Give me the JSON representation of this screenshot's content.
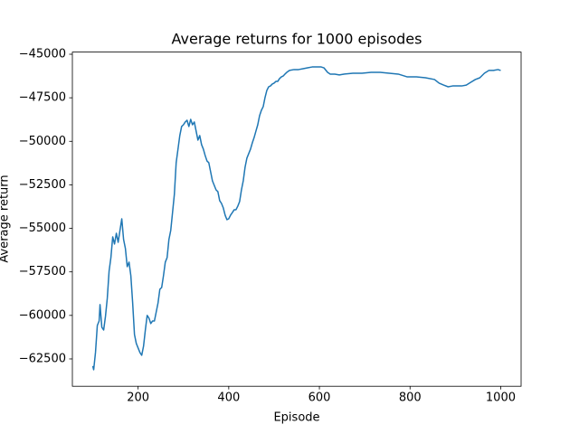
{
  "chart_data": {
    "type": "line",
    "title": "Average returns for 1000 episodes",
    "x_label": "Episode",
    "y_label": "Average return",
    "color": "#1f77b4",
    "x": [
      100,
      102,
      106,
      110,
      114,
      116,
      120,
      124,
      128,
      132,
      136,
      140,
      144,
      148,
      152,
      156,
      160,
      164,
      168,
      172,
      176,
      180,
      184,
      188,
      192,
      196,
      200,
      204,
      208,
      212,
      216,
      220,
      224,
      228,
      232,
      236,
      240,
      244,
      248,
      252,
      256,
      260,
      264,
      268,
      272,
      276,
      280,
      284,
      288,
      292,
      296,
      300,
      304,
      308,
      312,
      316,
      320,
      324,
      328,
      332,
      336,
      340,
      344,
      348,
      352,
      356,
      360,
      364,
      368,
      372,
      376,
      380,
      384,
      388,
      392,
      396,
      400,
      404,
      408,
      412,
      416,
      420,
      424,
      428,
      432,
      436,
      440,
      444,
      448,
      452,
      456,
      460,
      464,
      468,
      472,
      476,
      480,
      484,
      488,
      492,
      496,
      500,
      504,
      508,
      512,
      516,
      520,
      524,
      528,
      534,
      544,
      554,
      564,
      574,
      584,
      594,
      604,
      610,
      618,
      624,
      634,
      644,
      654,
      674,
      694,
      714,
      734,
      754,
      774,
      794,
      814,
      834,
      854,
      864,
      874,
      884,
      894,
      904,
      914,
      924,
      934,
      944,
      954,
      964,
      974,
      984,
      994,
      1000
    ],
    "values": [
      -62910,
      -63120,
      -62130,
      -60580,
      -60320,
      -59380,
      -60680,
      -60840,
      -60060,
      -59020,
      -57460,
      -56680,
      -55490,
      -55900,
      -55280,
      -55800,
      -55120,
      -54450,
      -55640,
      -56160,
      -57200,
      -56940,
      -57720,
      -59280,
      -61100,
      -61610,
      -61870,
      -62130,
      -62290,
      -61770,
      -60840,
      -60000,
      -60160,
      -60470,
      -60320,
      -60320,
      -59800,
      -59280,
      -58500,
      -58400,
      -57720,
      -56940,
      -56680,
      -55640,
      -55120,
      -54090,
      -53050,
      -51230,
      -50450,
      -49670,
      -49150,
      -49050,
      -48890,
      -48790,
      -49150,
      -48740,
      -49050,
      -48890,
      -49410,
      -49930,
      -49670,
      -50190,
      -50450,
      -50820,
      -51130,
      -51230,
      -51750,
      -52270,
      -52530,
      -52790,
      -52890,
      -53410,
      -53570,
      -53830,
      -54240,
      -54500,
      -54450,
      -54240,
      -54090,
      -53930,
      -53930,
      -53720,
      -53460,
      -52790,
      -52270,
      -51490,
      -50970,
      -50710,
      -50450,
      -50090,
      -49780,
      -49410,
      -49050,
      -48530,
      -48220,
      -48010,
      -47490,
      -47080,
      -46870,
      -46820,
      -46710,
      -46660,
      -46560,
      -46560,
      -46400,
      -46300,
      -46250,
      -46140,
      -46040,
      -45930,
      -45880,
      -45880,
      -45830,
      -45780,
      -45730,
      -45730,
      -45730,
      -45780,
      -46040,
      -46140,
      -46140,
      -46190,
      -46140,
      -46090,
      -46090,
      -46040,
      -46040,
      -46090,
      -46140,
      -46300,
      -46300,
      -46350,
      -46450,
      -46660,
      -46770,
      -46870,
      -46820,
      -46820,
      -46820,
      -46770,
      -46610,
      -46450,
      -46350,
      -46090,
      -45930,
      -45930,
      -45880,
      -45930
    ],
    "xlim": [
      55,
      1045
    ],
    "ylim": [
      -64070,
      -44875
    ],
    "xticks": [
      200,
      400,
      600,
      800,
      1000
    ],
    "yticks": [
      {
        "value": -62500,
        "label": "−62500"
      },
      {
        "value": -60000,
        "label": "−60000"
      },
      {
        "value": -57500,
        "label": "−57500"
      },
      {
        "value": -55000,
        "label": "−55000"
      },
      {
        "value": -52500,
        "label": "−52500"
      },
      {
        "value": -50000,
        "label": "−50000"
      },
      {
        "value": -47500,
        "label": "−47500"
      },
      {
        "value": -45000,
        "label": "−45000"
      }
    ]
  }
}
